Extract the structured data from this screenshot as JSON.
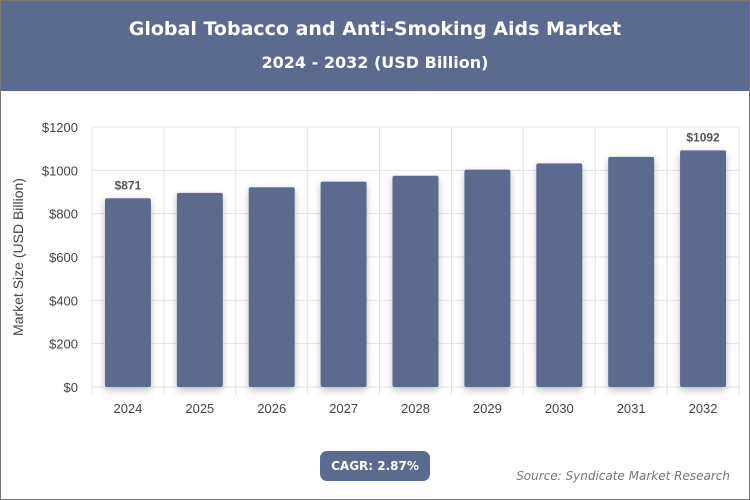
{
  "header": {
    "title": "Global Tobacco and Anti-Smoking Aids Market",
    "subtitle": "2024 - 2032 (USD Billion)"
  },
  "chart_data": {
    "type": "bar",
    "categories": [
      "2024",
      "2025",
      "2026",
      "2027",
      "2028",
      "2029",
      "2030",
      "2031",
      "2032"
    ],
    "values": [
      871,
      896,
      922,
      948,
      975,
      1003,
      1032,
      1062,
      1092
    ],
    "data_labels": {
      "0": "$871",
      "8": "$1092"
    },
    "ylabel": "Market Size (USD Billion)",
    "ylim": [
      0,
      1200
    ],
    "yticks": [
      "$0",
      "$200",
      "$400",
      "$600",
      "$800",
      "$1000",
      "$1200"
    ],
    "grid": true,
    "bar_color": "#5b6a8f"
  },
  "footer": {
    "cagr": "CAGR: 2.87%",
    "source": "Source: Syndicate Market Research"
  }
}
